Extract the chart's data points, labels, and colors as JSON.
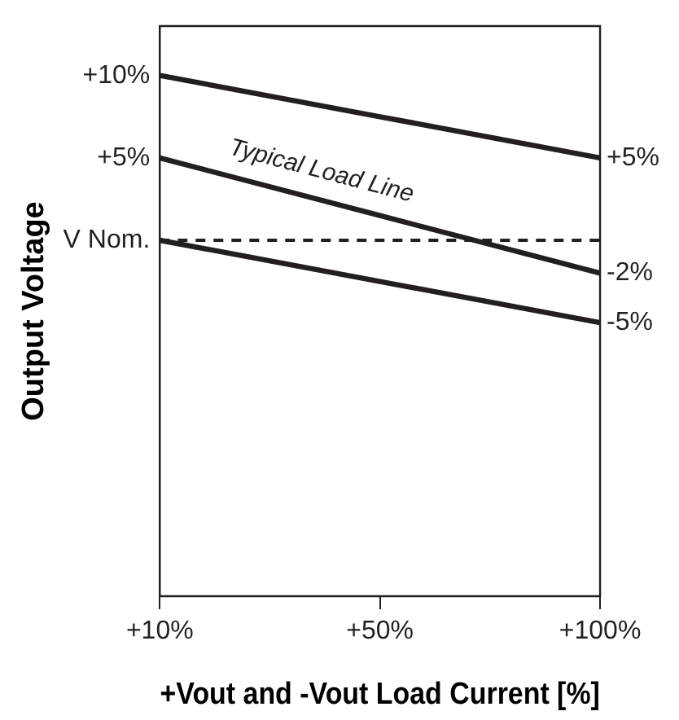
{
  "chart_data": {
    "type": "line",
    "xlabel": "+Vout and -Vout Load Current [%]",
    "ylabel": "Output Voltage",
    "categories": [
      "+10%",
      "+50%",
      "+100%"
    ],
    "series": [
      {
        "color": "#231f20",
        "values": [
          10,
          7.5,
          5
        ]
      },
      {
        "color": "#231f20",
        "values": [
          5,
          1.5,
          -2
        ]
      },
      {
        "color": "#231f20",
        "values": [
          0,
          -2.5,
          -5
        ]
      }
    ],
    "ylim": [
      -21.6,
      13
    ],
    "yticks": [
      {
        "value": 10,
        "label": "+10%"
      },
      {
        "value": 5,
        "label": "+5%"
      },
      {
        "value": 0,
        "label": "V Nom."
      }
    ],
    "y2lim": [
      -21.6,
      13
    ],
    "y2ticks": [
      {
        "value": 5,
        "label": "+5%"
      },
      {
        "value": -2,
        "label": "-2%"
      },
      {
        "value": -5,
        "label": "-5%"
      }
    ],
    "ref_lines": [
      {
        "axis": "y",
        "value": 0,
        "color": "#231f20",
        "line_style": "dashed"
      }
    ],
    "annotations": [
      "Typical Load Line"
    ],
    "grid": false,
    "legend": false,
    "marker": "none",
    "line_style": "solid"
  }
}
